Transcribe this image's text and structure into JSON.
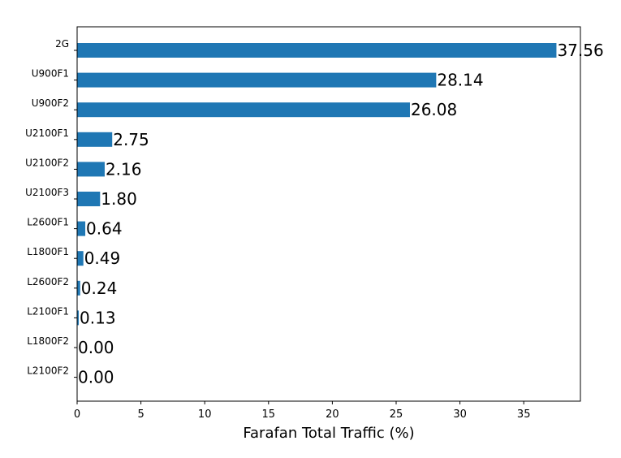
{
  "chart_data": {
    "type": "bar",
    "orientation": "horizontal",
    "categories": [
      "2G",
      "U900F1",
      "U900F2",
      "U2100F1",
      "U2100F2",
      "U2100F3",
      "L2600F1",
      "L1800F1",
      "L2600F2",
      "L2100F1",
      "L1800F2",
      "L2100F2"
    ],
    "values": [
      37.56,
      28.14,
      26.08,
      2.75,
      2.16,
      1.8,
      0.64,
      0.49,
      0.24,
      0.13,
      0.0,
      0.0
    ],
    "value_labels": [
      "37.56",
      "28.14",
      "26.08",
      "2.75",
      "2.16",
      "1.80",
      "0.64",
      "0.49",
      "0.24",
      "0.13",
      "0.00",
      "0.00"
    ],
    "xlabel": "Farafan Total Traffic (%)",
    "ylabel": "",
    "title": "",
    "xlim": [
      0,
      39.44
    ],
    "xticks": [
      0,
      5,
      10,
      15,
      20,
      25,
      30,
      35
    ],
    "xtick_labels": [
      "0",
      "5",
      "10",
      "15",
      "20",
      "25",
      "30",
      "35"
    ],
    "grid": false,
    "bar_color": "#1f77b4"
  }
}
